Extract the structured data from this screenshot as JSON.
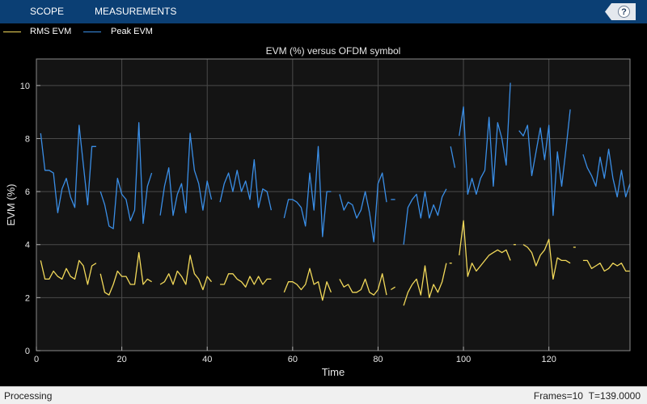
{
  "toolstrip": {
    "tabs": [
      "SCOPE",
      "MEASUREMENTS"
    ],
    "help_label": "?"
  },
  "legend": {
    "items": [
      {
        "label": "RMS EVM",
        "color": "#f2d95a"
      },
      {
        "label": "Peak EVM",
        "color": "#3a8ee6"
      }
    ]
  },
  "status": {
    "left": "Processing",
    "frames": "Frames=10",
    "time": "T=139.0000"
  },
  "colors": {
    "toolstrip_bg": "#0b3f74",
    "plot_bg": "#000000",
    "axes_bg": "#141414",
    "grid": "#4a4a4a",
    "text": "#ffffff"
  },
  "chart_data": {
    "type": "line",
    "title": "EVM (%) versus OFDM symbol",
    "xlabel": "Time",
    "ylabel": "EVM (%)",
    "xlim": [
      0,
      139
    ],
    "ylim": [
      0,
      11
    ],
    "xticks": [
      0,
      20,
      40,
      60,
      80,
      100,
      120
    ],
    "yticks": [
      0,
      2,
      4,
      6,
      8,
      10
    ],
    "grid": true,
    "legend_position": "top",
    "series": [
      {
        "name": "RMS EVM",
        "color": "#f2d95a",
        "segments": [
          {
            "x": [
              1,
              2,
              3,
              4,
              5,
              6,
              7,
              8,
              9,
              10,
              11,
              12,
              13,
              14
            ],
            "y": [
              3.4,
              2.7,
              2.7,
              3.0,
              2.8,
              2.7,
              3.1,
              2.8,
              2.7,
              3.4,
              3.2,
              2.5,
              3.2,
              3.3
            ]
          },
          {
            "x": [
              15,
              16,
              17,
              18,
              19,
              20,
              21,
              22,
              23,
              24,
              25,
              26,
              27
            ],
            "y": [
              2.9,
              2.2,
              2.1,
              2.5,
              3.0,
              2.8,
              2.8,
              2.5,
              2.5,
              3.7,
              2.5,
              2.7,
              2.6
            ]
          },
          {
            "x": [
              29,
              30,
              31,
              32,
              33,
              34,
              35,
              36,
              37,
              38,
              39,
              40,
              41
            ],
            "y": [
              2.5,
              2.6,
              2.9,
              2.5,
              3.0,
              2.8,
              2.5,
              3.6,
              2.9,
              2.7,
              2.3,
              2.8,
              2.6
            ]
          },
          {
            "x": [
              43,
              44,
              45,
              46,
              47,
              48,
              49,
              50,
              51,
              52,
              53,
              54,
              55
            ],
            "y": [
              2.5,
              2.5,
              2.9,
              2.9,
              2.7,
              2.6,
              2.4,
              2.8,
              2.5,
              2.8,
              2.5,
              2.7,
              2.7
            ]
          },
          {
            "x": [
              58,
              59,
              60,
              61,
              62,
              63,
              64,
              65,
              66,
              67,
              68,
              69
            ],
            "y": [
              2.2,
              2.6,
              2.6,
              2.5,
              2.3,
              2.5,
              3.1,
              2.5,
              2.6,
              1.9,
              2.6,
              2.2
            ]
          },
          {
            "x": [
              71,
              72,
              73,
              74,
              75,
              76,
              77,
              78,
              79,
              80,
              81,
              82
            ],
            "y": [
              2.7,
              2.4,
              2.5,
              2.2,
              2.2,
              2.3,
              2.7,
              2.2,
              2.1,
              2.3,
              2.9,
              2.1
            ]
          },
          {
            "x": [
              83,
              84
            ],
            "y": [
              2.3,
              2.4
            ]
          },
          {
            "x": [
              86,
              87,
              88,
              89,
              90,
              91,
              92,
              93,
              94,
              95,
              96
            ],
            "y": [
              1.7,
              2.2,
              2.5,
              2.7,
              2.1,
              3.2,
              2.0,
              2.5,
              2.2,
              2.6,
              3.3
            ]
          },
          {
            "x": [
              97
            ],
            "y": [
              3.3
            ]
          },
          {
            "x": [
              99,
              100,
              101,
              102,
              103,
              104,
              105,
              106,
              107,
              108,
              109,
              110,
              111
            ],
            "y": [
              3.6,
              4.9,
              2.8,
              3.3,
              3.0,
              3.2,
              3.4,
              3.6,
              3.7,
              3.8,
              3.7,
              3.8,
              3.4
            ]
          },
          {
            "x": [
              112
            ],
            "y": [
              4.0
            ]
          },
          {
            "x": [
              114,
              115,
              116,
              117,
              118,
              119,
              120,
              121,
              122,
              123,
              124,
              125
            ],
            "y": [
              4.0,
              3.9,
              3.7,
              3.2,
              3.6,
              3.8,
              4.2,
              2.7,
              3.5,
              3.4,
              3.4,
              3.3
            ]
          },
          {
            "x": [
              126
            ],
            "y": [
              3.9
            ]
          },
          {
            "x": [
              128,
              129,
              130,
              131,
              132,
              133,
              134,
              135,
              136,
              137,
              138,
              139
            ],
            "y": [
              3.4,
              3.4,
              3.1,
              3.2,
              3.3,
              3.0,
              3.1,
              3.3,
              3.2,
              3.3,
              3.0,
              3.0
            ]
          }
        ]
      },
      {
        "name": "Peak EVM",
        "color": "#3a8ee6",
        "segments": [
          {
            "x": [
              1,
              2,
              3,
              4,
              5,
              6,
              7,
              8,
              9,
              10,
              11,
              12,
              13,
              14
            ],
            "y": [
              8.2,
              6.8,
              6.8,
              6.7,
              5.2,
              6.1,
              6.5,
              5.8,
              5.4,
              8.5,
              7.0,
              5.5,
              7.7,
              7.7
            ]
          },
          {
            "x": [
              15,
              16,
              17,
              18,
              19,
              20,
              21,
              22,
              23,
              24,
              25,
              26,
              27
            ],
            "y": [
              6.0,
              5.5,
              4.7,
              4.6,
              6.5,
              5.9,
              5.7,
              4.9,
              5.3,
              8.6,
              4.8,
              6.2,
              6.7
            ]
          },
          {
            "x": [
              29,
              30,
              31,
              32,
              33,
              34,
              35,
              36,
              37,
              38,
              39,
              40,
              41
            ],
            "y": [
              5.1,
              6.2,
              6.9,
              5.1,
              5.9,
              6.3,
              5.2,
              8.2,
              6.8,
              6.3,
              5.3,
              6.4,
              5.7
            ]
          },
          {
            "x": [
              43,
              44,
              45,
              46,
              47,
              48,
              49,
              50,
              51,
              52,
              53,
              54,
              55
            ],
            "y": [
              5.6,
              6.3,
              6.7,
              6.0,
              6.8,
              6.0,
              6.4,
              5.7,
              7.2,
              5.4,
              6.1,
              6.0,
              5.3
            ]
          },
          {
            "x": [
              58,
              59,
              60,
              61,
              62,
              63,
              64,
              65,
              66,
              67,
              68,
              69
            ],
            "y": [
              5.0,
              5.7,
              5.7,
              5.6,
              5.4,
              4.7,
              6.7,
              5.3,
              7.7,
              4.3,
              6.0,
              6.0
            ]
          },
          {
            "x": [
              71,
              72,
              73,
              74,
              75,
              76,
              77,
              78,
              79,
              80,
              81,
              82
            ],
            "y": [
              5.9,
              5.3,
              5.6,
              5.5,
              5.0,
              5.3,
              6.0,
              5.2,
              4.1,
              6.3,
              6.7,
              5.6
            ]
          },
          {
            "x": [
              83,
              84
            ],
            "y": [
              5.7,
              5.7
            ]
          },
          {
            "x": [
              86,
              87,
              88,
              89,
              90,
              91,
              92,
              93,
              94,
              95,
              96
            ],
            "y": [
              4.0,
              5.4,
              5.7,
              5.9,
              5.0,
              6.0,
              5.0,
              5.5,
              5.1,
              5.8,
              6.1
            ]
          },
          {
            "x": [
              97,
              98
            ],
            "y": [
              7.7,
              6.9
            ]
          },
          {
            "x": [
              99,
              100,
              101,
              102,
              103,
              104,
              105,
              106,
              107,
              108,
              109,
              110,
              111
            ],
            "y": [
              8.1,
              9.2,
              5.9,
              6.5,
              5.9,
              6.5,
              6.8,
              8.8,
              6.2,
              8.6,
              8.0,
              7.0,
              10.1
            ]
          },
          {
            "x": [
              113,
              114,
              115,
              116,
              117,
              118,
              119,
              120,
              121,
              122,
              123,
              124,
              125
            ],
            "y": [
              8.3,
              8.1,
              8.5,
              6.6,
              7.5,
              8.4,
              7.2,
              8.5,
              5.1,
              7.5,
              6.2,
              7.6,
              9.1
            ]
          },
          {
            "x": [
              128,
              129,
              130,
              131,
              132,
              133,
              134,
              135,
              136,
              137,
              138,
              139
            ],
            "y": [
              7.4,
              6.9,
              6.6,
              6.2,
              7.3,
              6.5,
              7.6,
              6.5,
              5.8,
              6.8,
              5.8,
              6.3
            ]
          }
        ]
      }
    ]
  }
}
